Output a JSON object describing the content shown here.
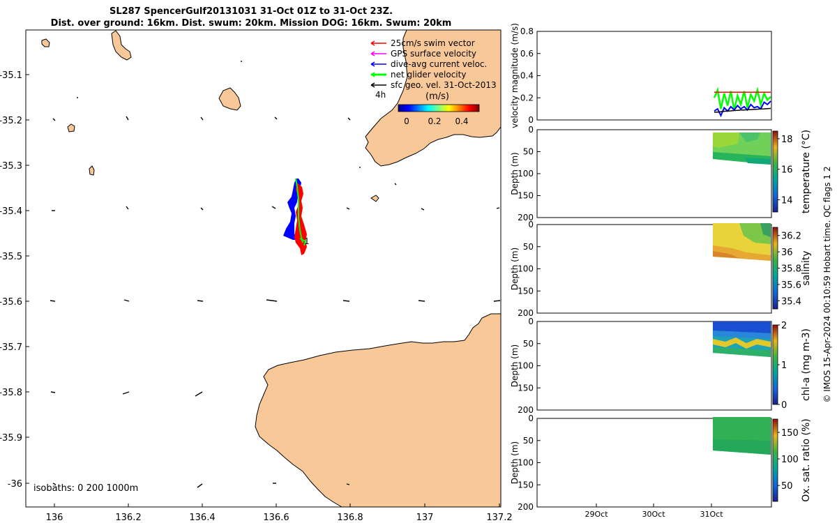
{
  "header": {
    "title_line1": "SL287 SpencerGulf20131031 31-Oct 01Z to 31-Oct 23Z.",
    "title_line2": "Dist. over ground: 16km. Dist. swum: 20km. Mission DOG: 16km. Swum: 20km"
  },
  "map": {
    "lat_ticks": [
      "-35.1",
      "-35.2",
      "-35.3",
      "-35.4",
      "-35.5",
      "-35.6",
      "-35.7",
      "-35.8",
      "-35.9",
      "-36"
    ],
    "lon_ticks": [
      "136",
      "136.2",
      "136.4",
      "136.6",
      "136.8",
      "137",
      "137.2"
    ],
    "legend": [
      {
        "label": "25cm/s swim vector",
        "color": "#ff0000"
      },
      {
        "label": "GPS surface velocity",
        "color": "#ff00ff"
      },
      {
        "label": "dive-avg current veloc.",
        "color": "#0000ff"
      },
      {
        "label": "net glider velocity",
        "color": "#00ff00"
      },
      {
        "label": "sfc geo. vel. 31-Oct-2013",
        "color": "#000000"
      }
    ],
    "colorbar_interval": "4h",
    "colorbar_unit": "(m/s)",
    "colorbar_ticks": [
      "0",
      "0.2",
      "0.4"
    ],
    "marker_label": "1",
    "isobaths": "isobaths: 0   200  1000m",
    "land_color": "#f9c898"
  },
  "panels": [
    {
      "ylabel": "velocity magnitude (m/s)",
      "yticks": [
        "0",
        "0.2",
        "0.4",
        "0.6",
        "0.8"
      ],
      "ylim": [
        0,
        0.8
      ]
    },
    {
      "ylabel": "Depth (m)",
      "yticks": [
        "200",
        "150",
        "100",
        "50",
        "0"
      ],
      "cbar_label": "temperature (°C)",
      "cbar_ticks": [
        "14",
        "16",
        "18"
      ],
      "cbar_range": [
        13.2,
        18.5
      ]
    },
    {
      "ylabel": "Depth (m)",
      "yticks": [
        "200",
        "150",
        "100",
        "50",
        "0"
      ],
      "cbar_label": "salinity",
      "cbar_ticks": [
        "35.4",
        "35.6",
        "35.8",
        "36",
        "36.2"
      ],
      "cbar_range": [
        35.3,
        36.3
      ]
    },
    {
      "ylabel": "Depth (m)",
      "yticks": [
        "200",
        "150",
        "100",
        "50",
        "0"
      ],
      "cbar_label": "chl-a (mg m-3)",
      "cbar_ticks": [
        "0",
        "1",
        "2"
      ],
      "cbar_range": [
        0,
        2
      ]
    },
    {
      "ylabel": "Depth (m)",
      "yticks": [
        "200",
        "150",
        "100",
        "50",
        "0"
      ],
      "cbar_label": "Ox. sat. ratio (%)",
      "cbar_ticks": [
        "50",
        "100",
        "150"
      ],
      "cbar_range": [
        20,
        175
      ]
    }
  ],
  "time_ticks": [
    "29Oct",
    "30Oct",
    "31Oct"
  ],
  "footer": {
    "vertical_note": "© IMOS 15-Apr-2024 00:10:59 Hobart time. QC flags 1  2"
  },
  "chart_data": [
    {
      "type": "scatter",
      "title": "SL287 SpencerGulf20131031 31-Oct 01Z to 31-Oct 23Z.",
      "xlim": [
        135.93,
        137.2
      ],
      "ylim": [
        -36.06,
        -35.04
      ],
      "glider_track": {
        "start": [
          136.64,
          -35.33
        ],
        "end": [
          136.66,
          -35.47
        ]
      }
    },
    {
      "type": "line",
      "ylabel": "velocity magnitude (m/s)",
      "ylim": [
        0,
        0.8
      ],
      "series": [
        {
          "name": "net glider velocity",
          "color": "#00ff00",
          "values": [
            0.2,
            0.27,
            0.1,
            0.24,
            0.13,
            0.26,
            0.09,
            0.22,
            0.14,
            0.26,
            0.11,
            0.23,
            0.17,
            0.27,
            0.14,
            0.24,
            0.18,
            0.21
          ]
        },
        {
          "name": "dive-avg current veloc.",
          "color": "#0000ff",
          "values": [
            0.08,
            0.1,
            0.04,
            0.11,
            0.08,
            0.12,
            0.09,
            0.13,
            0.1,
            0.12,
            0.09,
            0.14,
            0.11,
            0.12,
            0.1,
            0.16,
            0.14,
            0.17
          ]
        },
        {
          "name": "25cm/s swim vector",
          "color": "#ff0000",
          "values": [
            0.25,
            0.25,
            0.25,
            0.25,
            0.25,
            0.25,
            0.25,
            0.25,
            0.25,
            0.25,
            0.25,
            0.25,
            0.25,
            0.25,
            0.25,
            0.25,
            0.25,
            0.25
          ]
        },
        {
          "name": "sfc geo. vel. 31-Oct-2013",
          "color": "#000000",
          "values": [
            0.07,
            0.07,
            0.075,
            0.078,
            0.08,
            0.082,
            0.085,
            0.087,
            0.09,
            0.09,
            0.092,
            0.094,
            0.095,
            0.097,
            0.099,
            0.1,
            0.102,
            0.104
          ]
        }
      ]
    },
    {
      "type": "heatmap",
      "cbar_label": "temperature (°C)",
      "depth_range": [
        0,
        80
      ],
      "value_range": [
        15.5,
        17
      ]
    },
    {
      "type": "heatmap",
      "cbar_label": "salinity",
      "depth_range": [
        0,
        80
      ],
      "value_range": [
        35.9,
        36.2
      ]
    },
    {
      "type": "heatmap",
      "cbar_label": "chl-a (mg m-3)",
      "depth_range": [
        0,
        80
      ],
      "value_range": [
        0.6,
        1.7
      ]
    },
    {
      "type": "heatmap",
      "cbar_label": "Ox. sat. ratio (%)",
      "depth_range": [
        0,
        80
      ],
      "value_range": [
        105,
        115
      ]
    }
  ]
}
